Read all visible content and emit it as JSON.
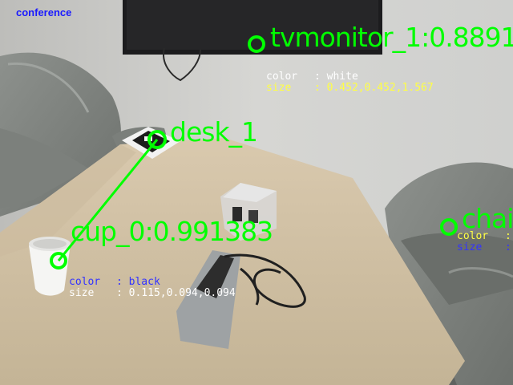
{
  "scene": {
    "title": "conference",
    "colors": {
      "label_green": "#00ff00",
      "title_blue": "#1a1aff",
      "attr_white": "#ffffff",
      "attr_yellow": "#ffff44",
      "attr_blue": "#3333ff"
    }
  },
  "detections": {
    "tvmonitor": {
      "label": "tvmonitor_1:0.8891",
      "color_key": "color",
      "color_val": ": white",
      "size_key": "size",
      "size_val": ": 0.452,0.452,1.567"
    },
    "desk": {
      "label": "desk_1"
    },
    "cup": {
      "label": "cup_0:0.991383",
      "color_key": "color",
      "color_val": ": black",
      "size_key": "size",
      "size_val": ": 0.115,0.094,0.094"
    },
    "chair": {
      "label": "chai",
      "color_key": "color",
      "color_val": ":",
      "size_key": "size",
      "size_val": ":"
    }
  }
}
